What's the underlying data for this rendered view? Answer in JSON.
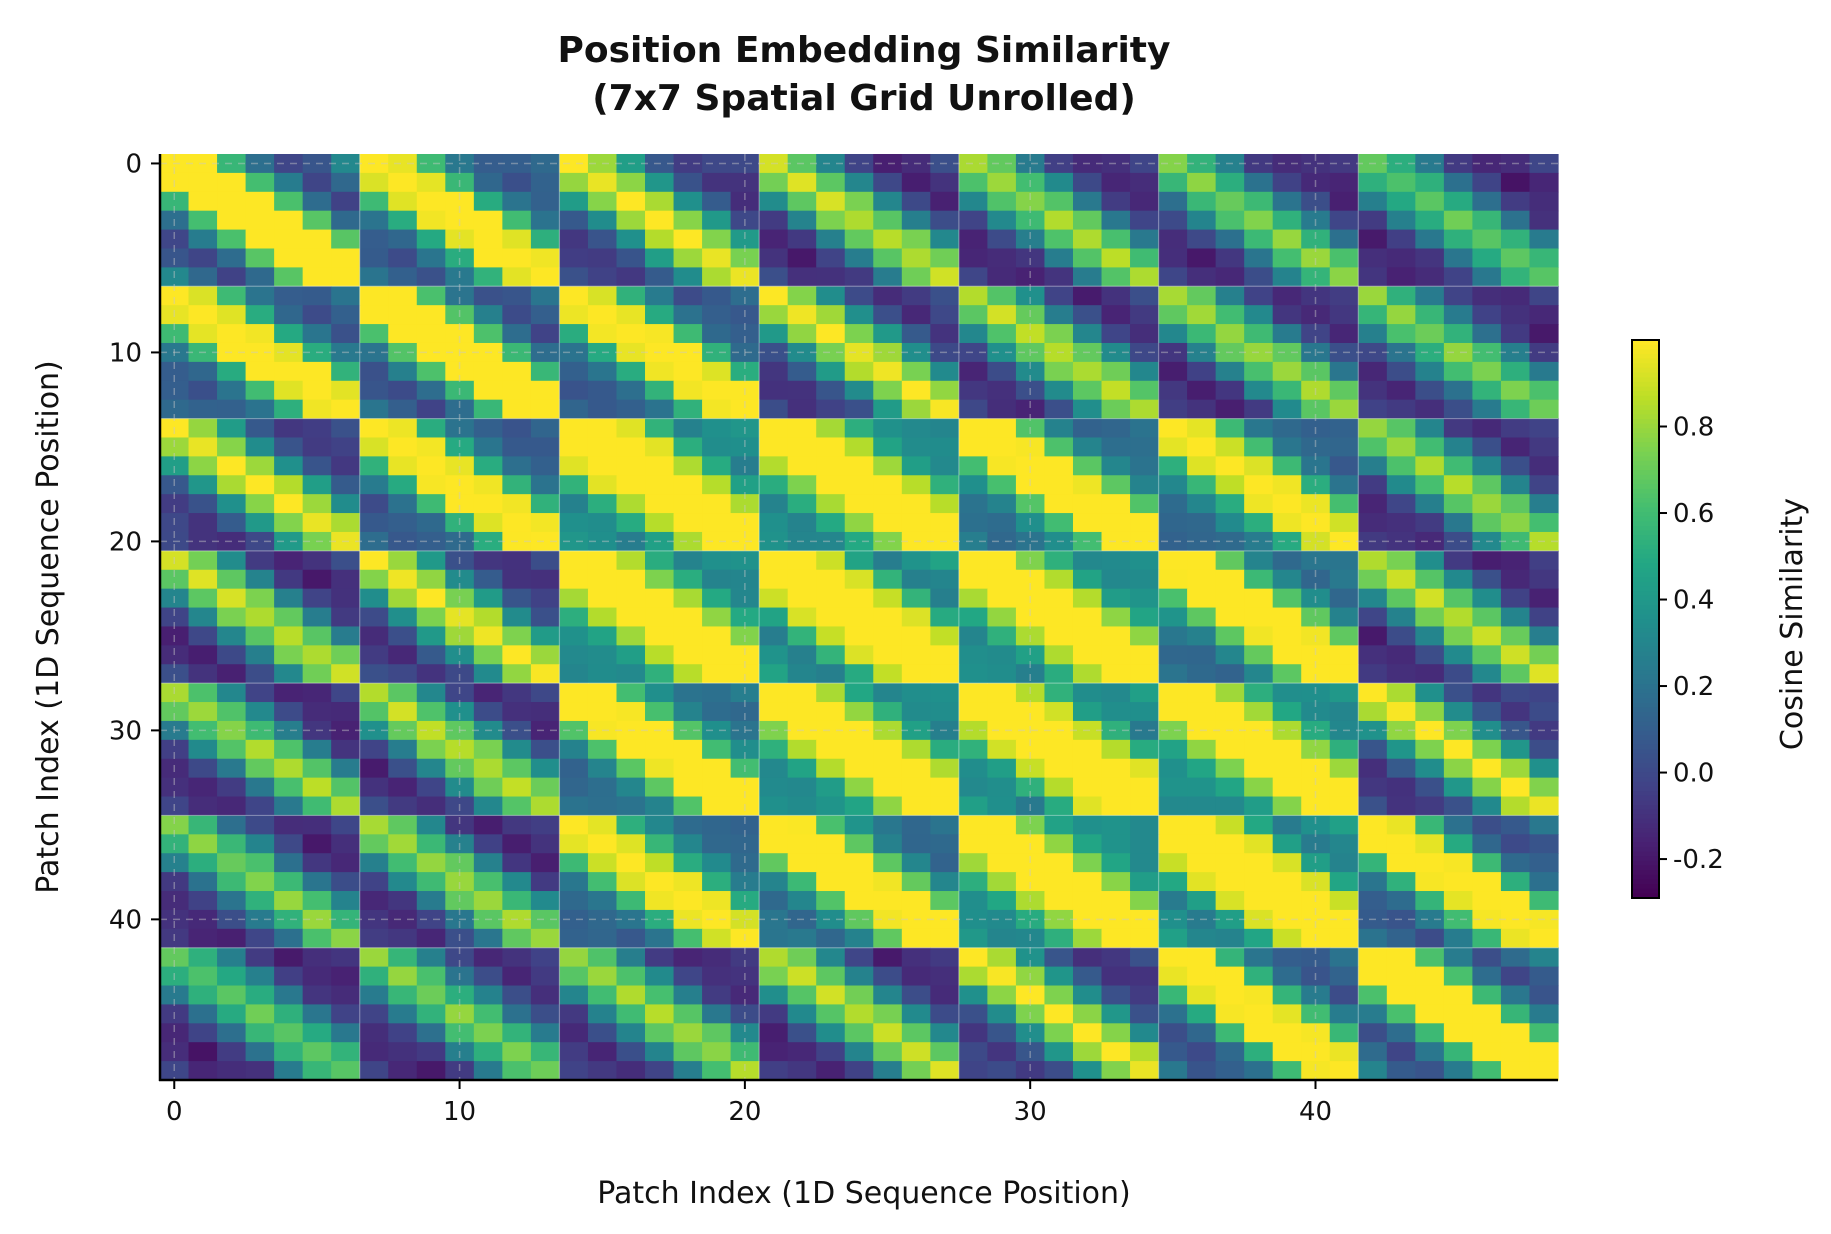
{
  "chart_data": {
    "type": "heatmap",
    "title": "Position Embedding Similarity",
    "subtitle": "(7x7 Spatial Grid Unrolled)",
    "xlabel": "Patch Index (1D Sequence Position)",
    "ylabel": "Patch Index (1D Sequence Position)",
    "n_patches": 49,
    "grid_size": 7,
    "x_ticks": [
      0,
      10,
      20,
      30,
      40
    ],
    "y_ticks": [
      0,
      10,
      20,
      30,
      40
    ],
    "x_tick_labels": [
      "0",
      "10",
      "20",
      "30",
      "40"
    ],
    "y_tick_labels": [
      "0",
      "10",
      "20",
      "30",
      "40"
    ],
    "xlim": [
      -0.5,
      48.5
    ],
    "ylim": [
      48.5,
      -0.5
    ],
    "colormap": "viridis",
    "colorbar": {
      "label": "Cosine Similarity",
      "range": [
        -0.29,
        1.0
      ],
      "ticks": [
        -0.2,
        0.0,
        0.2,
        0.4,
        0.6,
        0.8
      ],
      "tick_labels": [
        "-0.2",
        "0.0",
        "0.2",
        "0.4",
        "0.6",
        "0.8"
      ]
    },
    "grid": true,
    "block_lines_every": 7
  }
}
